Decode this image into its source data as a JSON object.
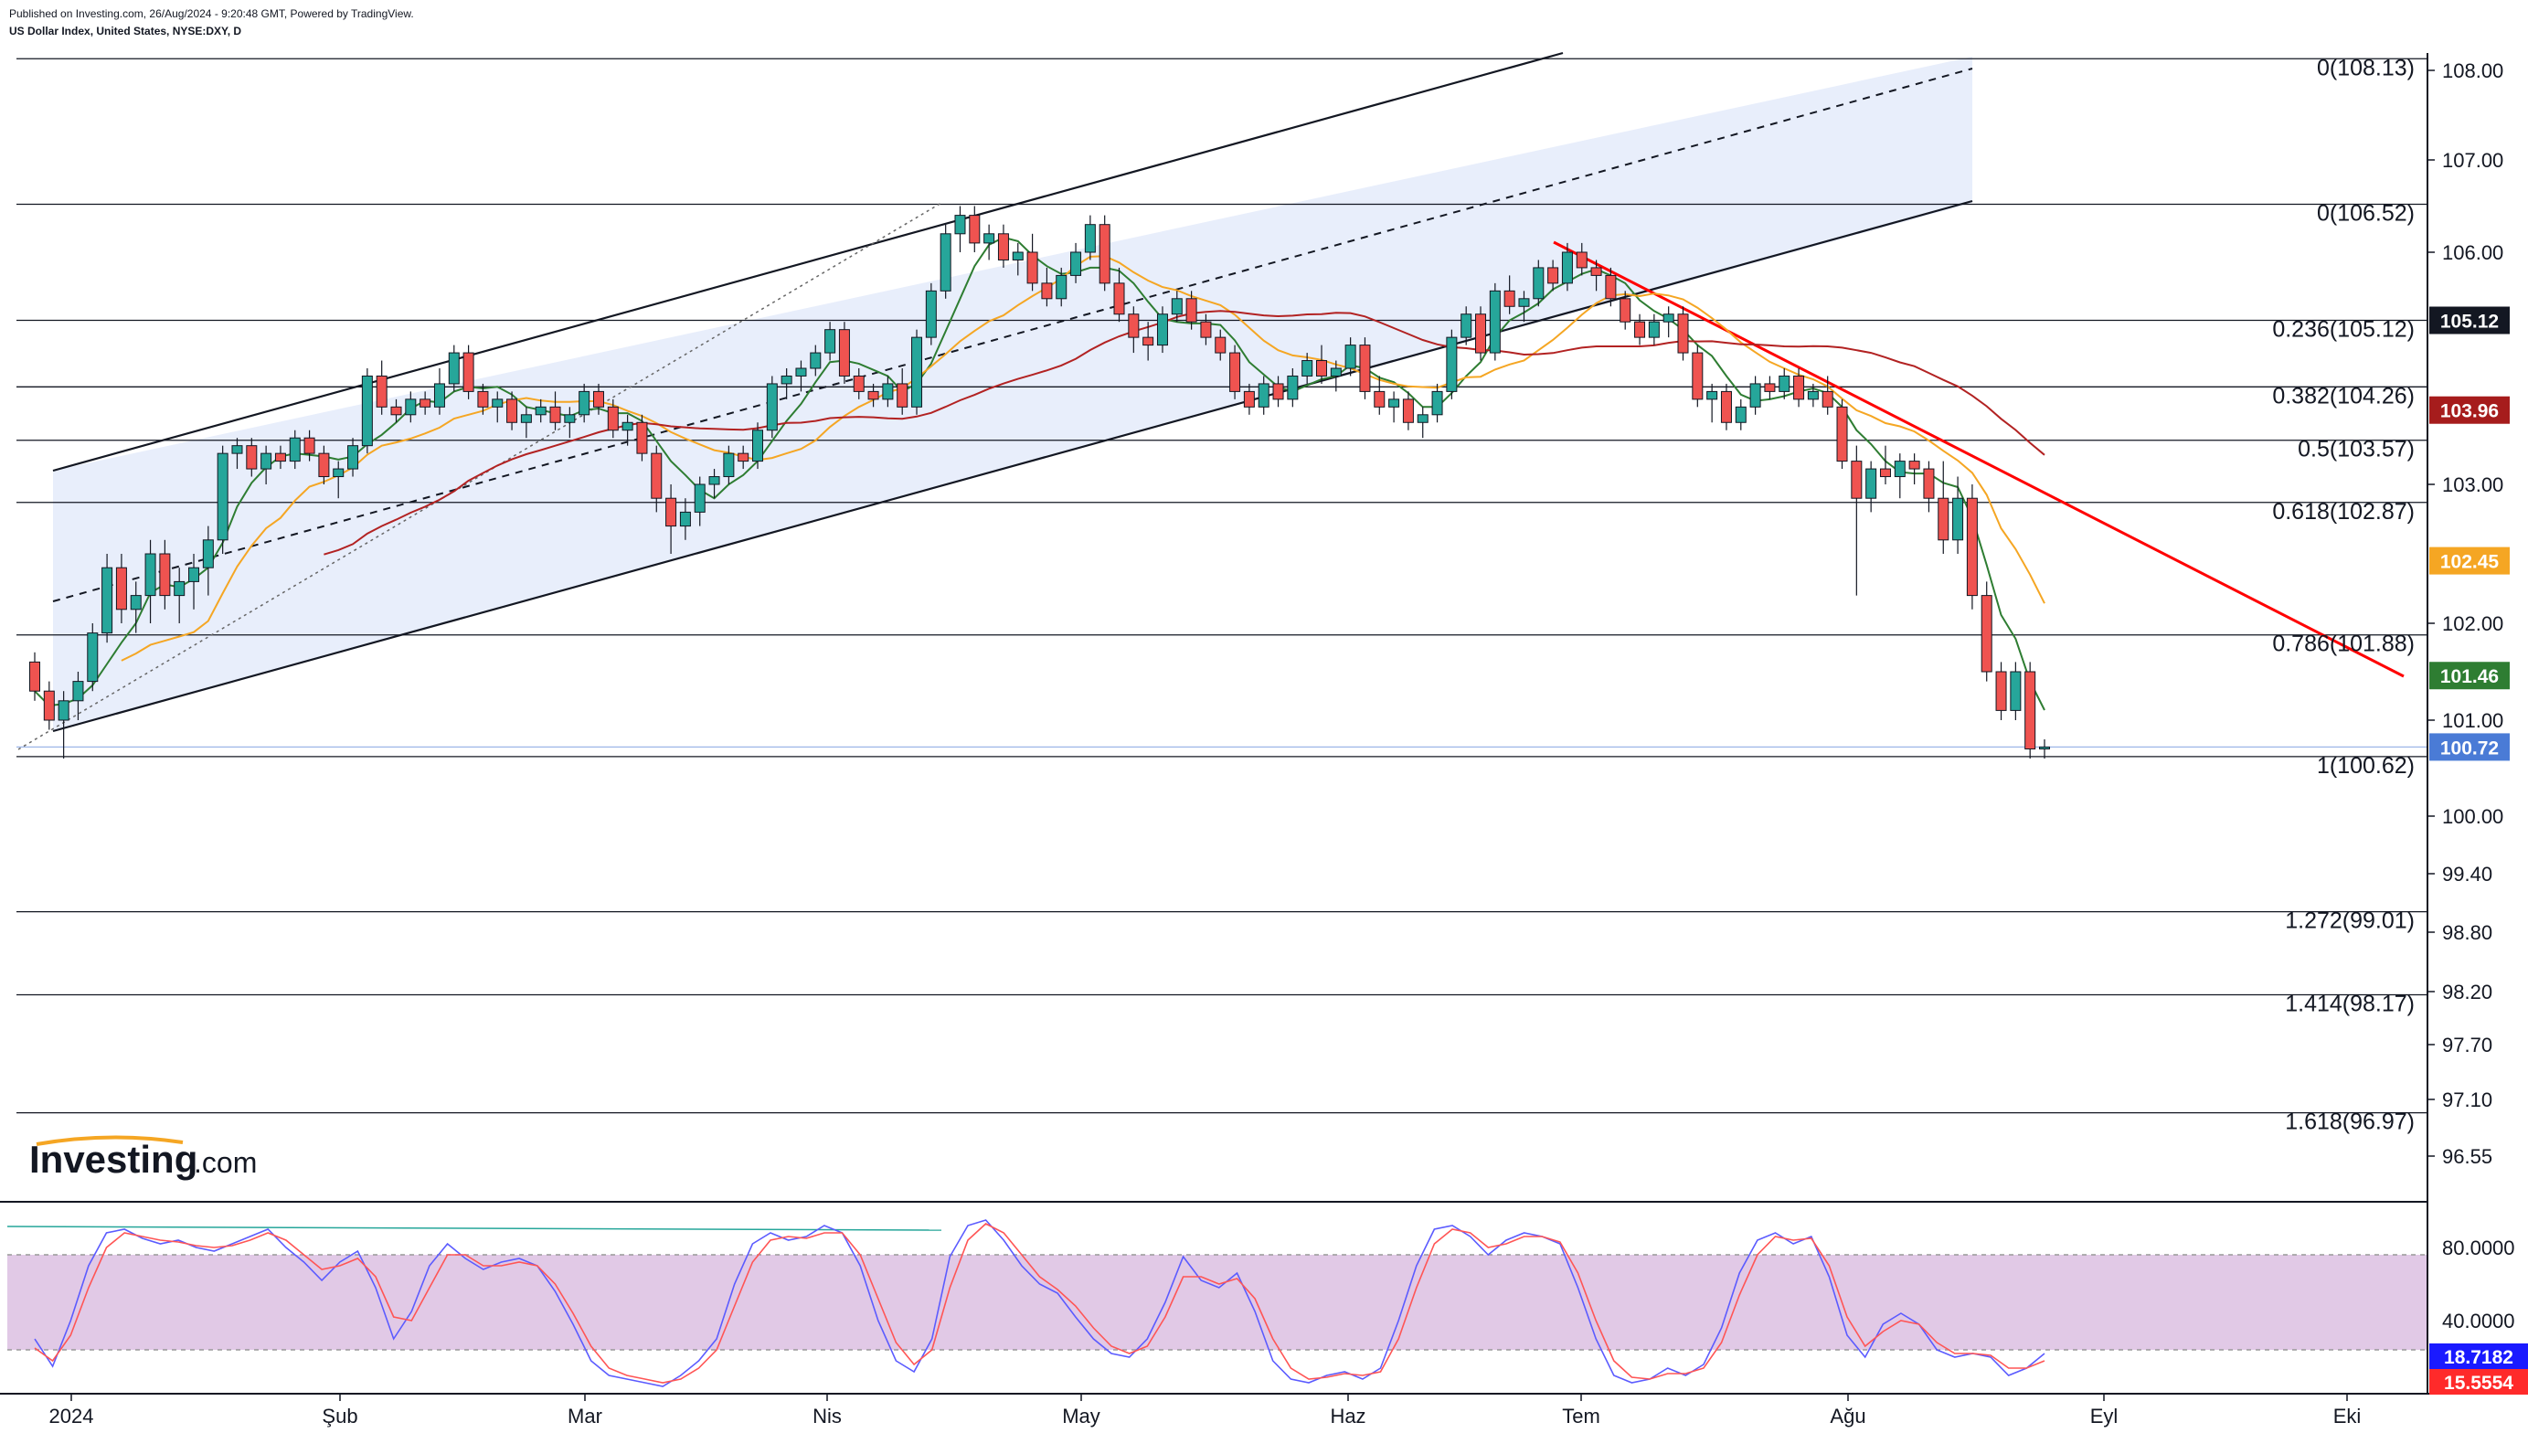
{
  "header": {
    "line1": "Published on Investing.com, 26/Aug/2024 - 9:20:48 GMT, Powered by TradingView.",
    "line2": "US Dollar Index, United States, NYSE:DXY, D"
  },
  "logo": {
    "brand": "Investing",
    "suffix": ".com"
  },
  "colors": {
    "bull": "#26a69a",
    "bear": "#ef5350",
    "ma_fast": "#2e7d32",
    "ma_mid": "#f5a623",
    "ma_slow": "#b22222",
    "trend_down": "#ff0000",
    "channel_fill": "#e8eefb",
    "stoch_k": "#5b5bff",
    "stoch_d": "#ff5555",
    "stoch_band": "#e1c9e6"
  },
  "chart_data": [
    {
      "type": "candlestick",
      "title": "US Dollar Index, United States, NYSE:DXY, D",
      "price_axis": {
        "ticks": [
          "108.00",
          "107.00",
          "106.00",
          "103.00",
          "102.00",
          "101.00",
          "100.00",
          "99.40",
          "98.80",
          "98.20",
          "97.70",
          "97.10",
          "96.55"
        ],
        "ylim": [
          96.3,
          108.3
        ]
      },
      "time_axis": {
        "labels": [
          "2024",
          "Şub",
          "Mar",
          "Nis",
          "May",
          "Haz",
          "Tem",
          "Ağu",
          "Eyl",
          "Eki"
        ]
      },
      "fib_levels": [
        {
          "label": "0(108.13)",
          "value": 108.13
        },
        {
          "label": "0(106.52)",
          "value": 106.52
        },
        {
          "label": "0.236(105.12)",
          "value": 105.12
        },
        {
          "label": "0.382(104.26)",
          "value": 104.26
        },
        {
          "label": "0.5(103.57)",
          "value": 103.57
        },
        {
          "label": "0.618(102.87)",
          "value": 102.87
        },
        {
          "label": "0.786(101.88)",
          "value": 101.88
        },
        {
          "label": "1(100.62)",
          "value": 100.62
        },
        {
          "label": "1.272(99.01)",
          "value": 99.01
        },
        {
          "label": "1.414(98.17)",
          "value": 98.17
        },
        {
          "label": "1.618(96.97)",
          "value": 96.97
        }
      ],
      "price_tags": [
        {
          "text": "105.12",
          "value": 105.12,
          "color": "#131722"
        },
        {
          "text": "103.96",
          "value": 103.96,
          "color": "#a61c1c"
        },
        {
          "text": "102.45",
          "value": 102.45,
          "color": "#f5a623"
        },
        {
          "text": "101.46",
          "value": 101.46,
          "color": "#2e7d32"
        },
        {
          "text": "100.72",
          "value": 100.72,
          "color": "#4a7bd6"
        }
      ],
      "candles": [
        [
          101.6,
          101.7,
          101.2,
          101.3
        ],
        [
          101.3,
          101.4,
          100.9,
          101.0
        ],
        [
          101.0,
          101.3,
          100.6,
          101.2
        ],
        [
          101.2,
          101.5,
          101.0,
          101.4
        ],
        [
          101.4,
          102.0,
          101.3,
          101.9
        ],
        [
          101.9,
          102.5,
          101.8,
          102.4
        ],
        [
          102.4,
          102.5,
          102.0,
          102.1
        ],
        [
          102.1,
          102.3,
          101.9,
          102.2
        ],
        [
          102.2,
          102.6,
          102.0,
          102.5
        ],
        [
          102.5,
          102.6,
          102.1,
          102.2
        ],
        [
          102.2,
          102.4,
          102.0,
          102.3
        ],
        [
          102.3,
          102.5,
          102.1,
          102.4
        ],
        [
          102.4,
          102.7,
          102.2,
          102.6
        ],
        [
          102.6,
          103.5,
          102.5,
          103.4
        ],
        [
          103.4,
          103.6,
          103.2,
          103.5
        ],
        [
          103.5,
          103.6,
          103.1,
          103.2
        ],
        [
          103.2,
          103.5,
          103.0,
          103.4
        ],
        [
          103.4,
          103.5,
          103.2,
          103.3
        ],
        [
          103.3,
          103.7,
          103.2,
          103.6
        ],
        [
          103.6,
          103.7,
          103.3,
          103.4
        ],
        [
          103.4,
          103.5,
          103.0,
          103.1
        ],
        [
          103.1,
          103.3,
          102.9,
          103.2
        ],
        [
          103.2,
          103.6,
          103.1,
          103.5
        ],
        [
          103.5,
          104.5,
          103.4,
          104.4
        ],
        [
          104.4,
          104.6,
          103.9,
          104.0
        ],
        [
          104.0,
          104.1,
          103.8,
          103.9
        ],
        [
          103.9,
          104.2,
          103.8,
          104.1
        ],
        [
          104.1,
          104.2,
          103.9,
          104.0
        ],
        [
          104.0,
          104.5,
          103.9,
          104.3
        ],
        [
          104.3,
          104.8,
          104.2,
          104.7
        ],
        [
          104.7,
          104.8,
          104.1,
          104.2
        ],
        [
          104.2,
          104.3,
          103.9,
          104.0
        ],
        [
          104.0,
          104.2,
          103.8,
          104.1
        ],
        [
          104.1,
          104.2,
          103.7,
          103.8
        ],
        [
          103.8,
          104.0,
          103.6,
          103.9
        ],
        [
          103.9,
          104.1,
          103.8,
          104.0
        ],
        [
          104.0,
          104.2,
          103.7,
          103.8
        ],
        [
          103.8,
          104.0,
          103.6,
          103.9
        ],
        [
          103.9,
          104.3,
          103.8,
          104.2
        ],
        [
          104.2,
          104.3,
          103.9,
          104.0
        ],
        [
          104.0,
          104.1,
          103.6,
          103.7
        ],
        [
          103.7,
          103.9,
          103.5,
          103.8
        ],
        [
          103.8,
          103.9,
          103.3,
          103.4
        ],
        [
          103.4,
          103.5,
          102.8,
          102.9
        ],
        [
          102.9,
          103.0,
          102.5,
          102.7
        ],
        [
          102.7,
          102.9,
          102.6,
          102.8
        ],
        [
          102.8,
          103.1,
          102.7,
          103.0
        ],
        [
          103.0,
          103.2,
          102.9,
          103.1
        ],
        [
          103.1,
          103.5,
          103.0,
          103.4
        ],
        [
          103.4,
          103.5,
          103.2,
          103.3
        ],
        [
          103.3,
          103.8,
          103.2,
          103.7
        ],
        [
          103.7,
          104.4,
          103.6,
          104.3
        ],
        [
          104.3,
          104.5,
          104.1,
          104.4
        ],
        [
          104.4,
          104.6,
          104.2,
          104.5
        ],
        [
          104.5,
          104.8,
          104.4,
          104.7
        ],
        [
          104.7,
          105.1,
          104.6,
          105.0
        ],
        [
          105.0,
          105.1,
          104.3,
          104.4
        ],
        [
          104.4,
          104.5,
          104.1,
          104.2
        ],
        [
          104.2,
          104.3,
          104.0,
          104.1
        ],
        [
          104.1,
          104.4,
          104.0,
          104.3
        ],
        [
          104.3,
          104.5,
          103.9,
          104.0
        ],
        [
          104.0,
          105.0,
          103.9,
          104.9
        ],
        [
          104.9,
          105.6,
          104.8,
          105.5
        ],
        [
          105.5,
          106.3,
          105.4,
          106.2
        ],
        [
          106.2,
          106.5,
          106.0,
          106.4
        ],
        [
          106.4,
          106.5,
          106.0,
          106.1
        ],
        [
          106.1,
          106.3,
          105.9,
          106.2
        ],
        [
          106.2,
          106.3,
          105.8,
          105.9
        ],
        [
          105.9,
          106.1,
          105.7,
          106.0
        ],
        [
          106.0,
          106.2,
          105.5,
          105.6
        ],
        [
          105.6,
          105.8,
          105.3,
          105.4
        ],
        [
          105.4,
          105.8,
          105.3,
          105.7
        ],
        [
          105.7,
          106.1,
          105.6,
          106.0
        ],
        [
          106.0,
          106.4,
          105.9,
          106.3
        ],
        [
          106.3,
          106.4,
          105.5,
          105.6
        ],
        [
          105.6,
          105.8,
          105.1,
          105.2
        ],
        [
          105.2,
          105.3,
          104.7,
          104.9
        ],
        [
          104.9,
          105.1,
          104.6,
          104.8
        ],
        [
          104.8,
          105.3,
          104.7,
          105.2
        ],
        [
          105.2,
          105.5,
          105.1,
          105.4
        ],
        [
          105.4,
          105.5,
          105.0,
          105.1
        ],
        [
          105.1,
          105.2,
          104.8,
          104.9
        ],
        [
          104.9,
          105.0,
          104.6,
          104.7
        ],
        [
          104.7,
          104.8,
          104.1,
          104.2
        ],
        [
          104.2,
          104.3,
          103.9,
          104.0
        ],
        [
          104.0,
          104.4,
          103.9,
          104.3
        ],
        [
          104.3,
          104.4,
          104.0,
          104.1
        ],
        [
          104.1,
          104.5,
          104.0,
          104.4
        ],
        [
          104.4,
          104.7,
          104.3,
          104.6
        ],
        [
          104.6,
          104.8,
          104.3,
          104.4
        ],
        [
          104.4,
          104.6,
          104.2,
          104.5
        ],
        [
          104.5,
          104.9,
          104.4,
          104.8
        ],
        [
          104.8,
          104.9,
          104.1,
          104.2
        ],
        [
          104.2,
          104.4,
          103.9,
          104.0
        ],
        [
          104.0,
          104.2,
          103.8,
          104.1
        ],
        [
          104.1,
          104.2,
          103.7,
          103.8
        ],
        [
          103.8,
          104.0,
          103.6,
          103.9
        ],
        [
          103.9,
          104.3,
          103.8,
          104.2
        ],
        [
          104.2,
          105.0,
          104.1,
          104.9
        ],
        [
          104.9,
          105.3,
          104.8,
          105.2
        ],
        [
          105.2,
          105.3,
          104.6,
          104.7
        ],
        [
          104.7,
          105.6,
          104.6,
          105.5
        ],
        [
          105.5,
          105.7,
          105.2,
          105.3
        ],
        [
          105.3,
          105.5,
          105.1,
          105.4
        ],
        [
          105.4,
          105.9,
          105.3,
          105.8
        ],
        [
          105.8,
          105.9,
          105.5,
          105.6
        ],
        [
          105.6,
          106.1,
          105.5,
          106.0
        ],
        [
          106.0,
          106.1,
          105.7,
          105.8
        ],
        [
          105.8,
          105.9,
          105.5,
          105.7
        ],
        [
          105.7,
          105.8,
          105.3,
          105.4
        ],
        [
          105.4,
          105.5,
          105.0,
          105.1
        ],
        [
          105.1,
          105.2,
          104.8,
          104.9
        ],
        [
          104.9,
          105.2,
          104.8,
          105.1
        ],
        [
          105.1,
          105.3,
          104.9,
          105.2
        ],
        [
          105.2,
          105.3,
          104.6,
          104.7
        ],
        [
          104.7,
          104.8,
          104.0,
          104.1
        ],
        [
          104.1,
          104.3,
          103.8,
          104.2
        ],
        [
          104.2,
          104.3,
          103.7,
          103.8
        ],
        [
          103.8,
          104.1,
          103.7,
          104.0
        ],
        [
          104.0,
          104.4,
          103.9,
          104.3
        ],
        [
          104.3,
          104.4,
          104.1,
          104.2
        ],
        [
          104.2,
          104.5,
          104.1,
          104.4
        ],
        [
          104.4,
          104.5,
          104.0,
          104.1
        ],
        [
          104.1,
          104.3,
          104.0,
          104.2
        ],
        [
          104.2,
          104.4,
          103.9,
          104.0
        ],
        [
          104.0,
          104.1,
          103.2,
          103.3
        ],
        [
          103.3,
          103.5,
          102.2,
          102.9
        ],
        [
          102.9,
          103.3,
          102.8,
          103.2
        ],
        [
          103.2,
          103.5,
          103.0,
          103.1
        ],
        [
          103.1,
          103.4,
          102.9,
          103.3
        ],
        [
          103.3,
          103.4,
          103.0,
          103.2
        ],
        [
          103.2,
          103.3,
          102.8,
          102.9
        ],
        [
          102.9,
          103.3,
          102.5,
          102.6
        ],
        [
          102.6,
          103.1,
          102.5,
          102.9
        ],
        [
          102.9,
          103.0,
          102.1,
          102.2
        ],
        [
          102.2,
          102.3,
          101.4,
          101.5
        ],
        [
          101.5,
          101.6,
          101.0,
          101.1
        ],
        [
          101.1,
          101.6,
          101.0,
          101.5
        ],
        [
          101.5,
          101.6,
          100.6,
          100.7
        ],
        [
          100.7,
          100.8,
          100.6,
          100.72
        ]
      ],
      "ma_fast_last": 101.46,
      "ma_mid_last": 102.45,
      "ma_slow_last": 103.96
    },
    {
      "type": "line",
      "title": "Stochastic",
      "ticks": [
        "80.0000",
        "40.0000"
      ],
      "ylim": [
        0,
        100
      ],
      "band": [
        20,
        80
      ],
      "series": [
        {
          "values": [
            30,
            15,
            40,
            70,
            88,
            90,
            85,
            82,
            84,
            80,
            78,
            82,
            86,
            90,
            80,
            72,
            62,
            72,
            78,
            58,
            30,
            45,
            70,
            82,
            74,
            68,
            72,
            74,
            70,
            56,
            38,
            18,
            10,
            8,
            6,
            4,
            10,
            18,
            30,
            60,
            82,
            88,
            84,
            86,
            92,
            88,
            70,
            40,
            18,
            12,
            30,
            75,
            92,
            95,
            84,
            70,
            60,
            55,
            42,
            30,
            22,
            20,
            30,
            50,
            75,
            62,
            58,
            66,
            45,
            18,
            8,
            6,
            10,
            12,
            8,
            14,
            40,
            70,
            90,
            92,
            86,
            76,
            84,
            88,
            86,
            82,
            58,
            30,
            10,
            6,
            8,
            14,
            10,
            16,
            36,
            66,
            84,
            88,
            82,
            86,
            64,
            32,
            20,
            38,
            44,
            38,
            24,
            20,
            22,
            20,
            10,
            14,
            22
          ]
        },
        {
          "values": [
            25,
            18,
            32,
            58,
            80,
            88,
            86,
            84,
            83,
            81,
            80,
            81,
            84,
            88,
            84,
            76,
            68,
            70,
            74,
            64,
            42,
            40,
            58,
            76,
            76,
            70,
            70,
            72,
            70,
            60,
            44,
            26,
            14,
            10,
            8,
            6,
            8,
            14,
            24,
            48,
            72,
            84,
            86,
            85,
            88,
            88,
            76,
            52,
            28,
            16,
            24,
            58,
            84,
            93,
            88,
            76,
            64,
            57,
            48,
            36,
            26,
            22,
            26,
            42,
            64,
            64,
            60,
            63,
            52,
            30,
            14,
            8,
            9,
            11,
            10,
            12,
            30,
            58,
            82,
            90,
            88,
            80,
            82,
            86,
            86,
            83,
            66,
            40,
            18,
            9,
            8,
            11,
            11,
            14,
            28,
            54,
            76,
            86,
            84,
            85,
            70,
            42,
            26,
            34,
            40,
            38,
            28,
            22,
            22,
            21,
            14,
            14,
            18
          ]
        }
      ]
    }
  ]
}
